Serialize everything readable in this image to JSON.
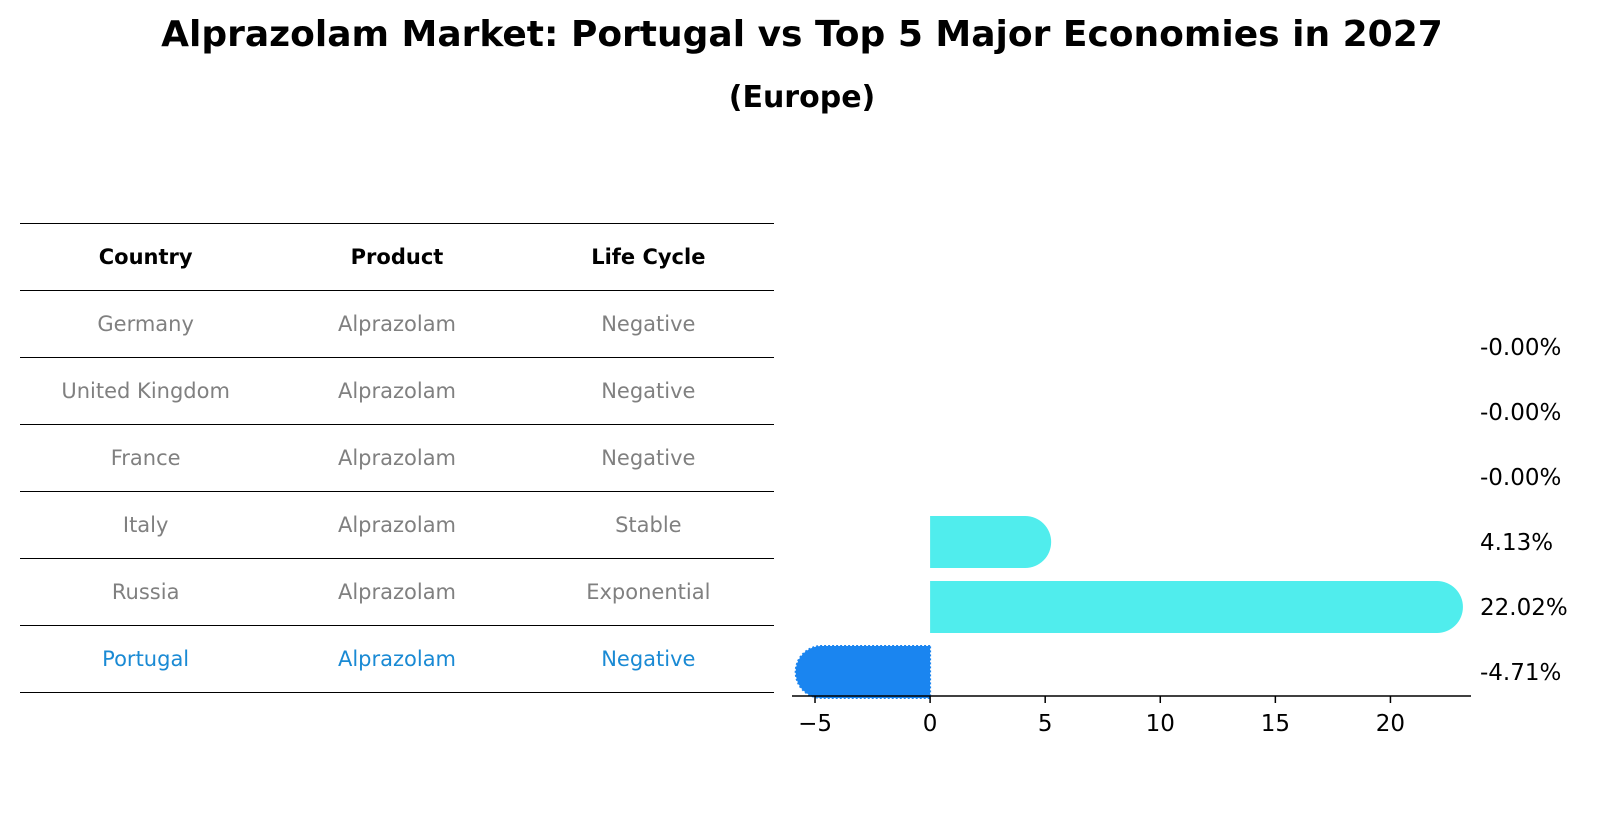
{
  "title": "Alprazolam Market: Portugal vs Top 5 Major Economies in 2027",
  "subtitle": "(Europe)",
  "table": {
    "headers": [
      "Country",
      "Product",
      "Life Cycle"
    ],
    "rows": [
      {
        "country": "Germany",
        "product": "Alprazolam",
        "life_cycle": "Negative"
      },
      {
        "country": "United Kingdom",
        "product": "Alprazolam",
        "life_cycle": "Negative"
      },
      {
        "country": "France",
        "product": "Alprazolam",
        "life_cycle": "Negative"
      },
      {
        "country": "Italy",
        "product": "Alprazolam",
        "life_cycle": "Stable"
      },
      {
        "country": "Russia",
        "product": "Alprazolam",
        "life_cycle": "Exponential"
      },
      {
        "country": "Portugal",
        "product": "Alprazolam",
        "life_cycle": "Negative"
      }
    ],
    "highlight_row": 5
  },
  "chart_data": {
    "type": "bar",
    "orientation": "horizontal",
    "categories": [
      "Germany",
      "United Kingdom",
      "France",
      "Italy",
      "Russia",
      "Portugal"
    ],
    "values": [
      -0.0,
      -0.0,
      -0.0,
      4.13,
      22.02,
      -4.71
    ],
    "value_labels": [
      "-0.00%",
      "-0.00%",
      "-0.00%",
      "4.13%",
      "22.02%",
      "-4.71%"
    ],
    "xlim": [
      -6,
      23.5
    ],
    "xticks": [
      -5,
      0,
      5,
      10,
      15,
      20
    ],
    "xtick_labels": [
      "−5",
      "0",
      "5",
      "10",
      "15",
      "20"
    ],
    "colors": {
      "positive": "#50eded",
      "highlight": "#1a85f0"
    },
    "grid": false
  }
}
